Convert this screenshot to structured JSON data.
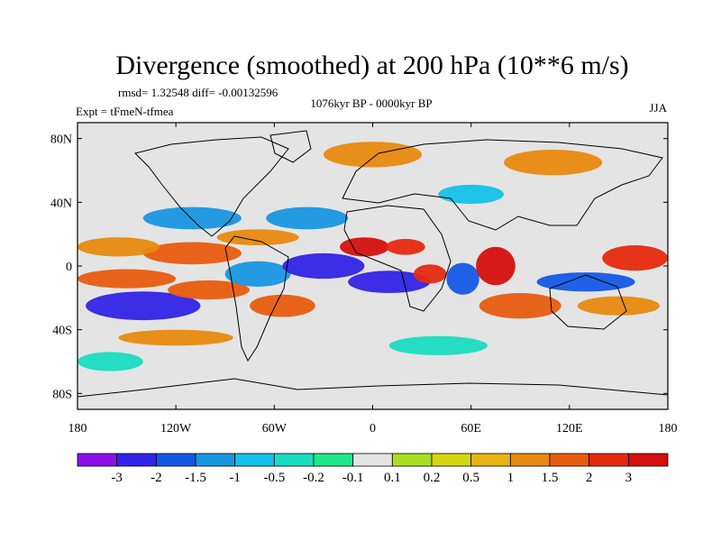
{
  "chart_data": {
    "type": "heatmap",
    "title": "Divergence (smoothed) at 200 hPa (10**6 m/s)",
    "stats_text": "rmsd= 1.32548 diff= -0.00132596",
    "period": "1076kyr BP - 0000kyr BP",
    "experiment": "Expt = tFmeN-tfmea",
    "season": "JJA",
    "x_range": [
      -180,
      180
    ],
    "y_range": [
      -90,
      90
    ],
    "x_ticks": [
      {
        "value": -180,
        "label": "180"
      },
      {
        "value": -120,
        "label": "120W"
      },
      {
        "value": -60,
        "label": "60W"
      },
      {
        "value": 0,
        "label": "0"
      },
      {
        "value": 60,
        "label": "60E"
      },
      {
        "value": 120,
        "label": "120E"
      },
      {
        "value": 180,
        "label": "180"
      }
    ],
    "y_ticks": [
      {
        "value": 80,
        "label": "80N"
      },
      {
        "value": 40,
        "label": "40N"
      },
      {
        "value": 0,
        "label": "0"
      },
      {
        "value": -40,
        "label": "40S"
      },
      {
        "value": -80,
        "label": "80S"
      }
    ],
    "colorbar": {
      "colors": [
        "#8a0fe8",
        "#3323e6",
        "#1458e6",
        "#1896e0",
        "#14c0e8",
        "#19dcc2",
        "#1fe88a",
        "#e4e4e4",
        "#a8e01f",
        "#d6d60f",
        "#e6b414",
        "#e8890f",
        "#e85c0f",
        "#e62a0f",
        "#d60f0f"
      ],
      "labels": [
        "-3",
        "-2",
        "-1.5",
        "-1",
        "-0.5",
        "-0.2",
        "-0.1",
        "0.1",
        "0.2",
        "0.5",
        "1",
        "1.5",
        "2",
        "3"
      ],
      "levels": [
        -3,
        -2,
        -1.5,
        -1,
        -0.5,
        -0.2,
        -0.1,
        0.1,
        0.2,
        0.5,
        1,
        1.5,
        2,
        3
      ]
    },
    "regions": [
      {
        "lon": -140,
        "lat": -25,
        "rx": 35,
        "ry": 9,
        "value": -3
      },
      {
        "lon": -150,
        "lat": -8,
        "rx": 30,
        "ry": 6,
        "value": 1.5
      },
      {
        "lon": -110,
        "lat": 8,
        "rx": 30,
        "ry": 7,
        "value": 1.5
      },
      {
        "lon": -155,
        "lat": 12,
        "rx": 25,
        "ry": 6,
        "value": 1
      },
      {
        "lon": -110,
        "lat": 30,
        "rx": 30,
        "ry": 7,
        "value": -1.5
      },
      {
        "lon": -40,
        "lat": 30,
        "rx": 25,
        "ry": 7,
        "value": -1.5
      },
      {
        "lon": -70,
        "lat": 18,
        "rx": 25,
        "ry": 5,
        "value": 1
      },
      {
        "lon": -100,
        "lat": -15,
        "rx": 25,
        "ry": 6,
        "value": 1.5
      },
      {
        "lon": -70,
        "lat": -5,
        "rx": 20,
        "ry": 8,
        "value": -1.5
      },
      {
        "lon": -55,
        "lat": -25,
        "rx": 20,
        "ry": 7,
        "value": 1.5
      },
      {
        "lon": -30,
        "lat": 0,
        "rx": 25,
        "ry": 8,
        "value": -3
      },
      {
        "lon": 10,
        "lat": -10,
        "rx": 25,
        "ry": 7,
        "value": -3
      },
      {
        "lon": -5,
        "lat": 12,
        "rx": 15,
        "ry": 6,
        "value": 3
      },
      {
        "lon": 20,
        "lat": 12,
        "rx": 12,
        "ry": 5,
        "value": 2
      },
      {
        "lon": 35,
        "lat": -5,
        "rx": 10,
        "ry": 6,
        "value": 2
      },
      {
        "lon": 55,
        "lat": -8,
        "rx": 10,
        "ry": 10,
        "value": -2
      },
      {
        "lon": 75,
        "lat": 0,
        "rx": 12,
        "ry": 12,
        "value": 3
      },
      {
        "lon": 90,
        "lat": -25,
        "rx": 25,
        "ry": 8,
        "value": 1.5
      },
      {
        "lon": 130,
        "lat": -10,
        "rx": 30,
        "ry": 6,
        "value": -2
      },
      {
        "lon": 160,
        "lat": 5,
        "rx": 20,
        "ry": 8,
        "value": 2
      },
      {
        "lon": 150,
        "lat": -25,
        "rx": 25,
        "ry": 6,
        "value": 1
      },
      {
        "lon": -120,
        "lat": -45,
        "rx": 35,
        "ry": 5,
        "value": 1
      },
      {
        "lon": 0,
        "lat": 70,
        "rx": 30,
        "ry": 8,
        "value": 1
      },
      {
        "lon": 110,
        "lat": 65,
        "rx": 30,
        "ry": 8,
        "value": 1
      },
      {
        "lon": 60,
        "lat": 45,
        "rx": 20,
        "ry": 6,
        "value": -1
      },
      {
        "lon": -160,
        "lat": -60,
        "rx": 20,
        "ry": 6,
        "value": -0.5
      },
      {
        "lon": 40,
        "lat": -50,
        "rx": 30,
        "ry": 6,
        "value": -0.5
      }
    ]
  }
}
